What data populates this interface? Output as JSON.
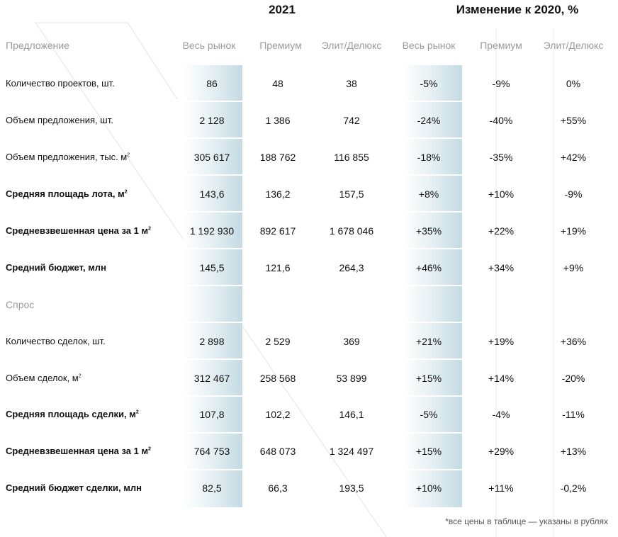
{
  "header": {
    "group_2021": "2021",
    "group_change": "Изменение к 2020, %"
  },
  "columns": [
    "Весь рынок",
    "Премиум",
    "Элит/Делюкс",
    "Весь рынок",
    "Премиум",
    "Элит/Делюкс"
  ],
  "sections": [
    {
      "title": "Предложение",
      "rows": [
        {
          "label": "Количество проектов, шт.",
          "values": [
            "86",
            "48",
            "38",
            "-5%",
            "-9%",
            "0%"
          ]
        },
        {
          "label": "Объем предложения, шт.",
          "values": [
            "2 128",
            "1 386",
            "742",
            "-24%",
            "-40%",
            "+55%"
          ]
        },
        {
          "label": "Объем предложения, тыс. м²",
          "values": [
            "305 617",
            "188 762",
            "116 855",
            "-18%",
            "-35%",
            "+42%"
          ]
        },
        {
          "label": "Средняя площадь лота, м²",
          "values": [
            "143,6",
            "136,2",
            "157,5",
            "+8%",
            "+10%",
            "-9%"
          ]
        },
        {
          "label": "Средневзвешенная цена за 1 м²",
          "values": [
            "1 192 930",
            "892 617",
            "1 678 046",
            "+35%",
            "+22%",
            "+19%"
          ]
        },
        {
          "label": "Средний бюджет, млн",
          "values": [
            "145,5",
            "121,6",
            "264,3",
            "+46%",
            "+34%",
            "+9%"
          ]
        }
      ]
    },
    {
      "title": "Спрос",
      "rows": [
        {
          "label": "Количество сделок, шт.",
          "values": [
            "2 898",
            "2 529",
            "369",
            "+21%",
            "+19%",
            "+36%"
          ]
        },
        {
          "label": "Объем сделок, м²",
          "values": [
            "312 467",
            "258 568",
            "53 899",
            "+15%",
            "+14%",
            "-20%"
          ]
        },
        {
          "label": "Средняя площадь сделки, м²",
          "values": [
            "107,8",
            "102,2",
            "146,1",
            "-5%",
            "-4%",
            "-11%"
          ]
        },
        {
          "label": "Средневзвешенная цена за 1 м²",
          "values": [
            "764 753",
            "648 073",
            "1 324 497",
            "+15%",
            "+29%",
            "+13%"
          ]
        },
        {
          "label": "Средний бюджет сделки, млн",
          "values": [
            "82,5",
            "66,3",
            "193,5",
            "+10%",
            "+11%",
            "-0,2%"
          ]
        }
      ]
    }
  ],
  "footnote": "*все цены в таблице — указаны в рублях"
}
